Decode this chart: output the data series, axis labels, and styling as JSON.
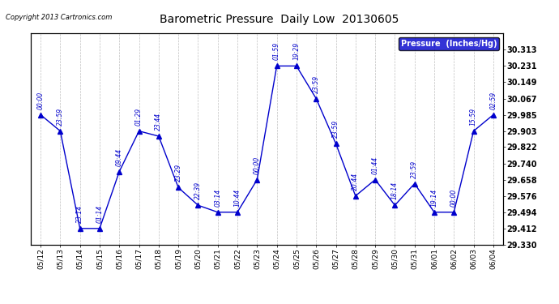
{
  "title": "Barometric Pressure  Daily Low  20130605",
  "copyright": "Copyright 2013 Cartronics.com",
  "legend_label": "Pressure  (Inches/Hg)",
  "x_labels": [
    "05/12",
    "05/13",
    "05/14",
    "05/15",
    "05/16",
    "05/17",
    "05/18",
    "05/19",
    "05/20",
    "05/21",
    "05/22",
    "05/23",
    "05/24",
    "05/25",
    "05/26",
    "05/27",
    "05/28",
    "05/29",
    "05/30",
    "05/31",
    "06/01",
    "06/02",
    "06/03",
    "06/04"
  ],
  "y_values": [
    29.985,
    29.903,
    29.412,
    29.412,
    29.699,
    29.903,
    29.877,
    29.618,
    29.529,
    29.494,
    29.494,
    29.658,
    30.231,
    30.231,
    30.067,
    29.84,
    29.576,
    29.658,
    29.529,
    29.638,
    29.494,
    29.494,
    29.903,
    29.985
  ],
  "point_labels": [
    "00:00",
    "23:59",
    "23:14",
    "01:14",
    "09:44",
    "01:29",
    "23:44",
    "23:29",
    "22:39",
    "03:14",
    "10:44",
    "00:00",
    "01:59",
    "19:29",
    "23:59",
    "23:59",
    "20:44",
    "01:44",
    "18:14",
    "23:59",
    "19:14",
    "00:00",
    "15:59",
    "02:59"
  ],
  "ylim_min": 29.33,
  "ylim_max": 30.395,
  "yticks": [
    29.33,
    29.412,
    29.494,
    29.576,
    29.658,
    29.74,
    29.822,
    29.903,
    29.985,
    30.067,
    30.149,
    30.231,
    30.313
  ],
  "line_color": "#0000cc",
  "marker_color": "#0000cc",
  "grid_color": "#b0b0b0",
  "background_color": "#ffffff",
  "title_color": "#000000",
  "label_color": "#0000cc",
  "legend_bg": "#0000cc",
  "legend_text_color": "#ffffff"
}
